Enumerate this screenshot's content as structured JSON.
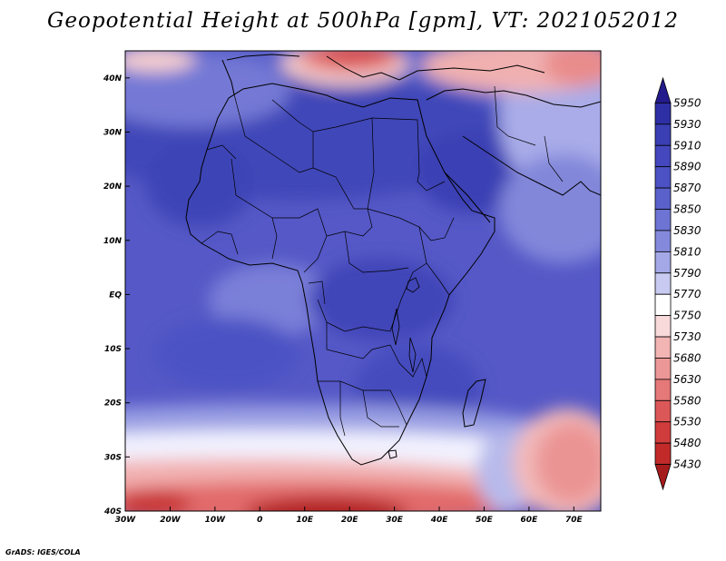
{
  "title": "Geopotential Height at 500hPa [gpm], VT: 2021052012",
  "credit": "GrADS: IGES/COLA",
  "map": {
    "lon_range": [
      -30,
      76
    ],
    "lat_range": [
      -40,
      45
    ],
    "lon_ticks": [
      {
        "value": -30,
        "label": "30W"
      },
      {
        "value": -20,
        "label": "20W"
      },
      {
        "value": -10,
        "label": "10W"
      },
      {
        "value": 0,
        "label": "0"
      },
      {
        "value": 10,
        "label": "10E"
      },
      {
        "value": 20,
        "label": "20E"
      },
      {
        "value": 30,
        "label": "30E"
      },
      {
        "value": 40,
        "label": "40E"
      },
      {
        "value": 50,
        "label": "50E"
      },
      {
        "value": 60,
        "label": "60E"
      },
      {
        "value": 70,
        "label": "70E"
      }
    ],
    "lat_ticks": [
      {
        "value": 40,
        "label": "40N"
      },
      {
        "value": 30,
        "label": "30N"
      },
      {
        "value": 20,
        "label": "20N"
      },
      {
        "value": 10,
        "label": "10N"
      },
      {
        "value": 0,
        "label": "EQ"
      },
      {
        "value": -10,
        "label": "10S"
      },
      {
        "value": -20,
        "label": "20S"
      },
      {
        "value": -30,
        "label": "30S"
      },
      {
        "value": -40,
        "label": "40S"
      }
    ]
  },
  "colorbar": {
    "levels": [
      5950,
      5930,
      5910,
      5890,
      5870,
      5850,
      5830,
      5810,
      5790,
      5770,
      5750,
      5730,
      5680,
      5630,
      5580,
      5530,
      5480,
      5430
    ],
    "colors": [
      "#231a8c",
      "#2e2fa5",
      "#3a3fb4",
      "#4447bd",
      "#4c52c4",
      "#5a61cb",
      "#6d74d3",
      "#8489dc",
      "#a4a8e6",
      "#c8caf1",
      "#ffffff",
      "#f9dada",
      "#f3b4b4",
      "#ec9797",
      "#e57878",
      "#dc5858",
      "#d03c3c",
      "#c22a2a",
      "#a61b1b"
    ]
  }
}
